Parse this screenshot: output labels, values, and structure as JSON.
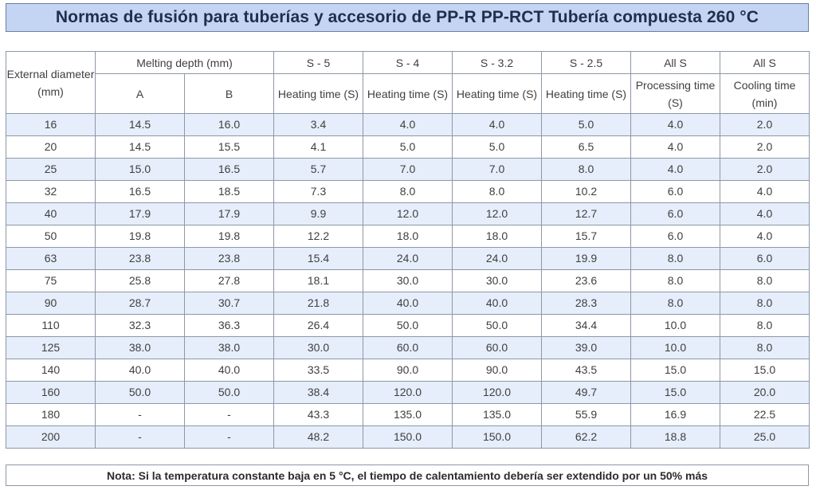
{
  "title": "Normas de fusión para tuberías y accesorio de PP-R PP-RCT Tubería compuesta 260 °C",
  "header": {
    "external_diameter": "External diameter (mm)",
    "melting_depth": "Melting depth (mm)",
    "col_a": "A",
    "col_b": "B",
    "s5": "S - 5",
    "s4": "S - 4",
    "s32": "S - 3.2",
    "s25": "S - 2.5",
    "all_s_1": "All S",
    "all_s_2": "All S",
    "heating_time_1": "Heating time (S)",
    "heating_time_2": "Heating time (S)",
    "heating_time_3": "Heating time (S)",
    "heating_time_4": "Heating time (S)",
    "processing_time": "Processing time (S)",
    "cooling_time": "Cooling time (min)"
  },
  "rows": [
    [
      "16",
      "14.5",
      "16.0",
      "3.4",
      "4.0",
      "4.0",
      "5.0",
      "4.0",
      "2.0"
    ],
    [
      "20",
      "14.5",
      "15.5",
      "4.1",
      "5.0",
      "5.0",
      "6.5",
      "4.0",
      "2.0"
    ],
    [
      "25",
      "15.0",
      "16.5",
      "5.7",
      "7.0",
      "7.0",
      "8.0",
      "4.0",
      "2.0"
    ],
    [
      "32",
      "16.5",
      "18.5",
      "7.3",
      "8.0",
      "8.0",
      "10.2",
      "6.0",
      "4.0"
    ],
    [
      "40",
      "17.9",
      "17.9",
      "9.9",
      "12.0",
      "12.0",
      "12.7",
      "6.0",
      "4.0"
    ],
    [
      "50",
      "19.8",
      "19.8",
      "12.2",
      "18.0",
      "18.0",
      "15.7",
      "6.0",
      "4.0"
    ],
    [
      "63",
      "23.8",
      "23.8",
      "15.4",
      "24.0",
      "24.0",
      "19.9",
      "8.0",
      "6.0"
    ],
    [
      "75",
      "25.8",
      "27.8",
      "18.1",
      "30.0",
      "30.0",
      "23.6",
      "8.0",
      "8.0"
    ],
    [
      "90",
      "28.7",
      "30.7",
      "21.8",
      "40.0",
      "40.0",
      "28.3",
      "8.0",
      "8.0"
    ],
    [
      "110",
      "32.3",
      "36.3",
      "26.4",
      "50.0",
      "50.0",
      "34.4",
      "10.0",
      "8.0"
    ],
    [
      "125",
      "38.0",
      "38.0",
      "30.0",
      "60.0",
      "60.0",
      "39.0",
      "10.0",
      "8.0"
    ],
    [
      "140",
      "40.0",
      "40.0",
      "33.5",
      "90.0",
      "90.0",
      "43.5",
      "15.0",
      "15.0"
    ],
    [
      "160",
      "50.0",
      "50.0",
      "38.4",
      "120.0",
      "120.0",
      "49.7",
      "15.0",
      "20.0"
    ],
    [
      "180",
      "-",
      "-",
      "43.3",
      "135.0",
      "135.0",
      "55.9",
      "16.9",
      "22.5"
    ],
    [
      "200",
      "-",
      "-",
      "48.2",
      "150.0",
      "150.0",
      "62.2",
      "18.8",
      "25.0"
    ]
  ],
  "note": "Nota: Si la temperatura constante baja en 5 °C, el tiempo de calentamiento debería ser extendido por un 50% más"
}
